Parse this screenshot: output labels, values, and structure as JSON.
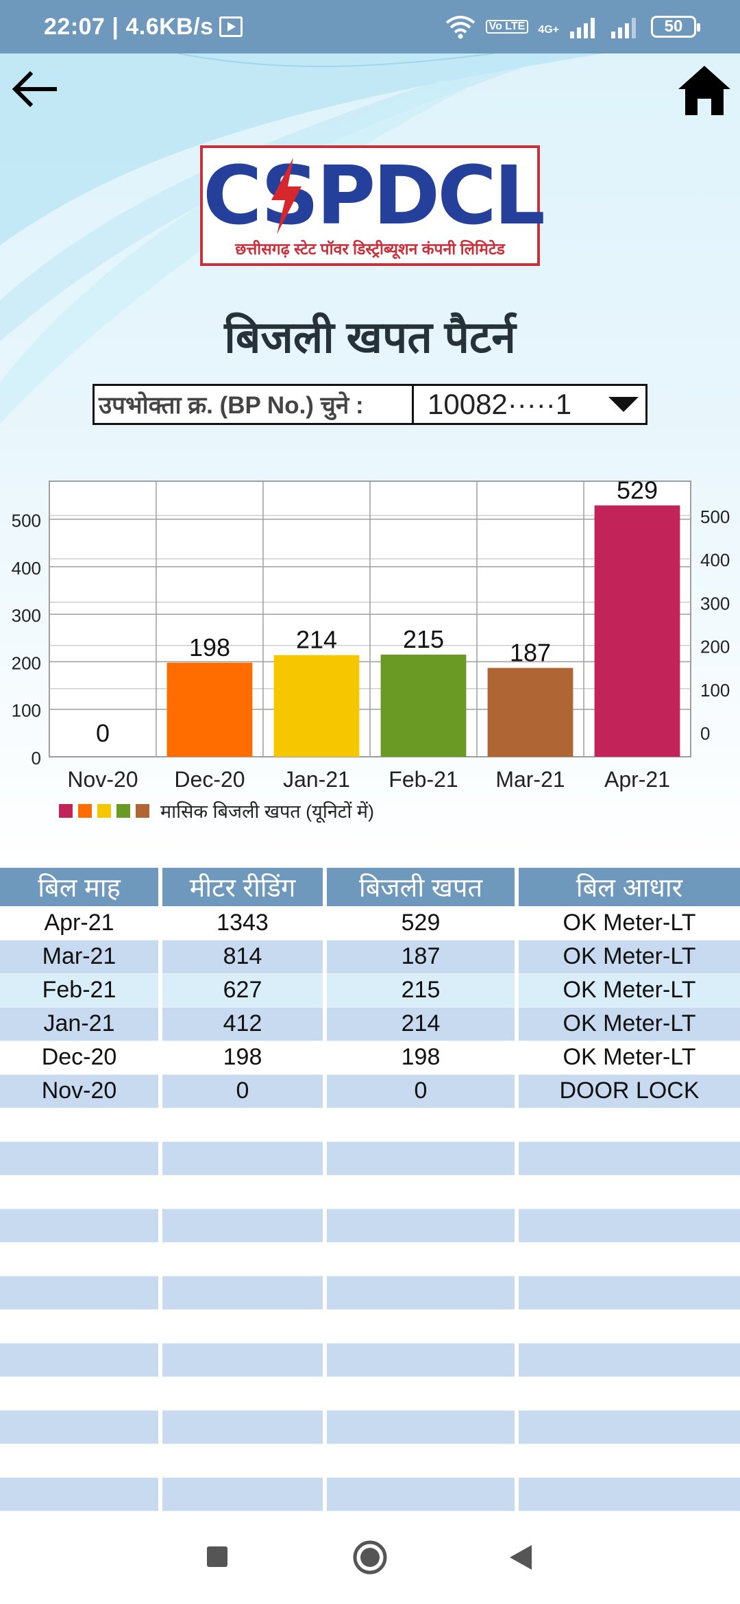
{
  "status_bar": {
    "time": "22:07 | 4.6KB/s",
    "network": "4G+",
    "volte": "Vo LTE",
    "battery": "50"
  },
  "header": {
    "back_icon": "arrow-left-icon",
    "home_icon": "home-icon"
  },
  "logo": {
    "text": "CSPDCL",
    "subtitle": "छत्तीसगढ़ स्टेट पॉवर डिस्ट्रीब्यूशन कंपनी लिमिटेड"
  },
  "page": {
    "title": "बिजली खपत पैटर्न"
  },
  "bp_select": {
    "label": "उपभोक्ता क्र. (BP No.) चुने :",
    "value": "10082·····1"
  },
  "chart_data": {
    "type": "bar",
    "categories": [
      "Nov-20",
      "Dec-20",
      "Jan-21",
      "Feb-21",
      "Mar-21",
      "Apr-21"
    ],
    "values": [
      0,
      198,
      214,
      215,
      187,
      529
    ],
    "colors": [
      "#c2185b",
      "#ff6d00",
      "#f6c700",
      "#6b9a24",
      "#b06535",
      "#c2245a"
    ],
    "y_left_ticks": [
      0,
      100,
      200,
      300,
      400,
      500
    ],
    "y_right_ticks": [
      0,
      100,
      200,
      300,
      400,
      500
    ],
    "ylim": [
      0,
      580
    ],
    "grid": true,
    "legend": {
      "label": "मासिक बिजली खपत (यूनिटों में)",
      "colors": [
        "#c2245a",
        "#ff6d00",
        "#f6c700",
        "#6b9a24",
        "#b06535"
      ],
      "placement": "bottom-left"
    }
  },
  "table": {
    "headers": [
      "बिल माह",
      "मीटर रीडिंग",
      "बिजली खपत",
      "बिल आधार"
    ],
    "rows": [
      [
        "Apr-21",
        "1343",
        "529",
        "OK Meter-LT"
      ],
      [
        "Mar-21",
        "814",
        "187",
        "OK Meter-LT"
      ],
      [
        "Feb-21",
        "627",
        "215",
        "OK Meter-LT"
      ],
      [
        "Jan-21",
        "412",
        "214",
        "OK Meter-LT"
      ],
      [
        "Dec-20",
        "198",
        "198",
        "OK Meter-LT"
      ],
      [
        "Nov-20",
        "0",
        "0",
        "DOOR LOCK"
      ]
    ],
    "empty_rows": 12
  },
  "nav": {
    "recents_icon": "square-icon",
    "home_icon": "circle-icon",
    "back_icon": "triangle-back-icon"
  }
}
